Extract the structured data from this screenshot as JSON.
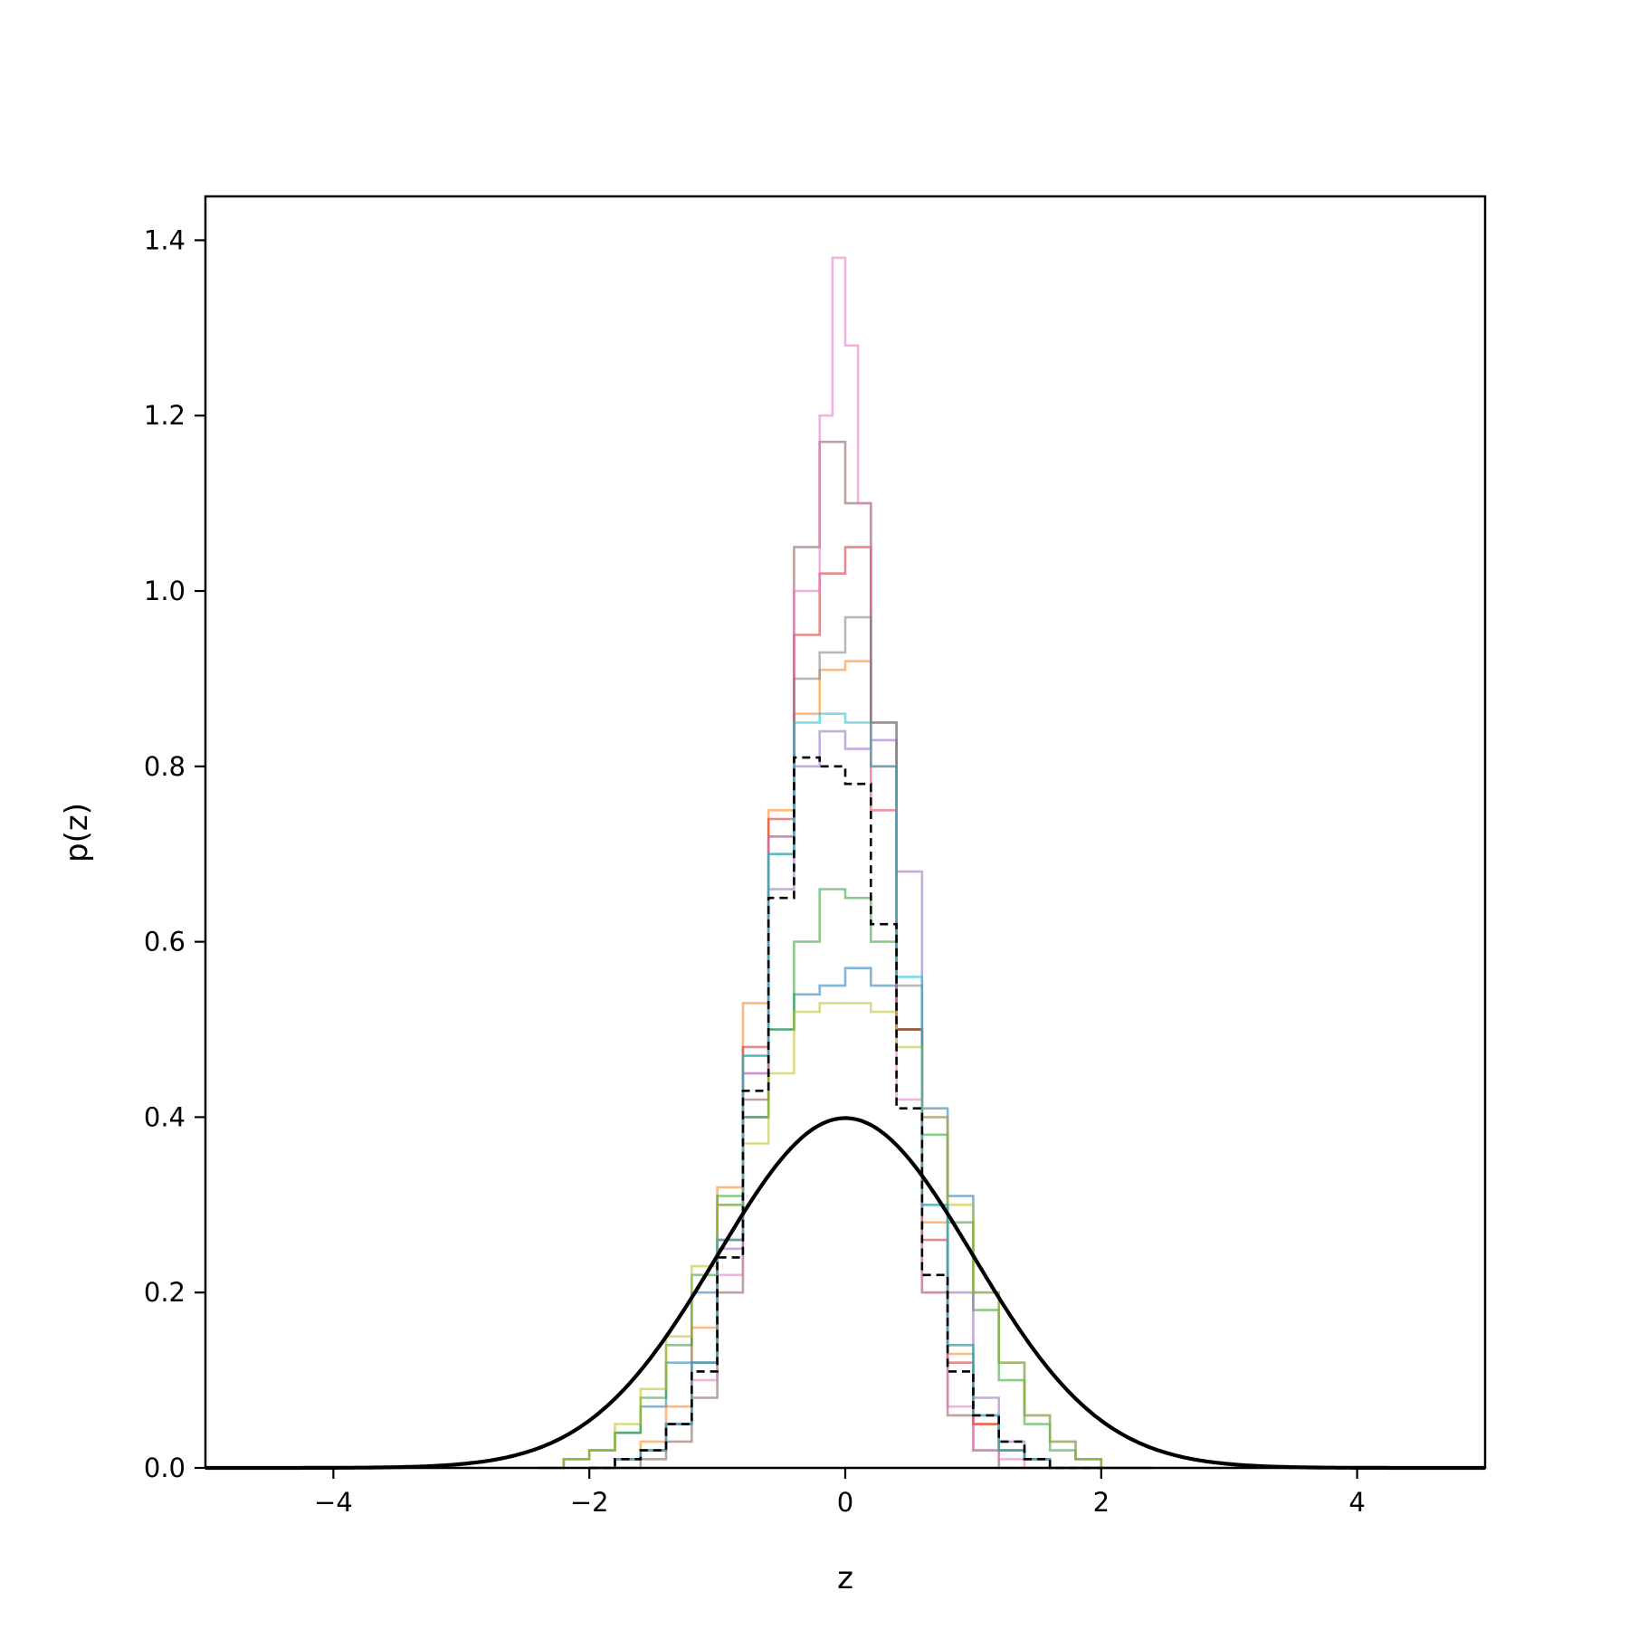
{
  "chart_data": {
    "type": "line",
    "title": "",
    "xlabel": "z",
    "ylabel": "p(z)",
    "xlim": [
      -5,
      5
    ],
    "ylim": [
      0,
      1.45
    ],
    "xticks": [
      -4,
      -2,
      0,
      2,
      4
    ],
    "xtick_labels": [
      "−4",
      "−2",
      "0",
      "2",
      "4"
    ],
    "yticks": [
      0.0,
      0.2,
      0.4,
      0.6,
      0.8,
      1.0,
      1.2,
      1.4
    ],
    "ytick_labels": [
      "0.0",
      "0.2",
      "0.4",
      "0.6",
      "0.8",
      "1.0",
      "1.2",
      "1.4"
    ],
    "grid": false,
    "legend": "none",
    "reference_curve": {
      "style": "solid",
      "color": "#000000",
      "mean": 0,
      "std": 1,
      "x": [
        -5,
        -4.5,
        -4,
        -3.5,
        -3,
        -2.5,
        -2,
        -1.5,
        -1,
        -0.5,
        0,
        0.5,
        1,
        1.5,
        2,
        2.5,
        3,
        3.5,
        4,
        4.5,
        5
      ],
      "y": [
        0.0,
        0.0,
        0.0001,
        0.0009,
        0.0044,
        0.0175,
        0.054,
        0.1295,
        0.242,
        0.3521,
        0.3989,
        0.3521,
        0.242,
        0.1295,
        0.054,
        0.0175,
        0.0044,
        0.0009,
        0.0001,
        0.0,
        0.0
      ]
    },
    "aggregate_histogram": {
      "style": "dashed",
      "color": "#000000",
      "edges": [
        -2.0,
        -1.8,
        -1.6,
        -1.4,
        -1.2,
        -1.0,
        -0.8,
        -0.6,
        -0.4,
        -0.2,
        0.0,
        0.2,
        0.4,
        0.6,
        0.8,
        1.0,
        1.2,
        1.4,
        1.6,
        1.8,
        2.0
      ],
      "values": [
        0.0,
        0.01,
        0.02,
        0.05,
        0.11,
        0.24,
        0.43,
        0.65,
        0.81,
        0.8,
        0.78,
        0.62,
        0.41,
        0.22,
        0.11,
        0.06,
        0.03,
        0.01,
        0.0,
        0.0
      ]
    },
    "series_histograms": [
      {
        "color": "#1f77b4",
        "edges": [
          -2.4,
          -2.2,
          -2.0,
          -1.8,
          -1.6,
          -1.4,
          -1.2,
          -1.0,
          -0.8,
          -0.6,
          -0.4,
          -0.2,
          0.0,
          0.2,
          0.4,
          0.6,
          0.8,
          1.0,
          1.2,
          1.4,
          1.6,
          1.8,
          2.0,
          2.2,
          2.4
        ],
        "values": [
          0.0,
          0.01,
          0.02,
          0.04,
          0.07,
          0.12,
          0.2,
          0.3,
          0.4,
          0.5,
          0.54,
          0.55,
          0.57,
          0.55,
          0.5,
          0.41,
          0.31,
          0.2,
          0.12,
          0.06,
          0.03,
          0.01,
          0.0,
          0.0
        ]
      },
      {
        "color": "#ff7f0e",
        "edges": [
          -2.0,
          -1.8,
          -1.6,
          -1.4,
          -1.2,
          -1.0,
          -0.8,
          -0.6,
          -0.4,
          -0.2,
          0.0,
          0.2,
          0.4,
          0.6,
          0.8,
          1.0,
          1.2,
          1.4,
          1.6,
          1.8,
          2.0
        ],
        "values": [
          0.0,
          0.01,
          0.03,
          0.07,
          0.16,
          0.32,
          0.53,
          0.75,
          0.86,
          0.91,
          0.92,
          0.75,
          0.5,
          0.28,
          0.13,
          0.05,
          0.02,
          0.01,
          0.0,
          0.0
        ]
      },
      {
        "color": "#2ca02c",
        "edges": [
          -2.4,
          -2.2,
          -2.0,
          -1.8,
          -1.6,
          -1.4,
          -1.2,
          -1.0,
          -0.8,
          -0.6,
          -0.4,
          -0.2,
          0.0,
          0.2,
          0.4,
          0.6,
          0.8,
          1.0,
          1.2,
          1.4,
          1.6,
          1.8,
          2.0,
          2.2,
          2.4
        ],
        "values": [
          0.0,
          0.01,
          0.02,
          0.04,
          0.08,
          0.14,
          0.22,
          0.31,
          0.4,
          0.5,
          0.6,
          0.66,
          0.65,
          0.6,
          0.5,
          0.38,
          0.28,
          0.18,
          0.1,
          0.05,
          0.02,
          0.01,
          0.0,
          0.0
        ]
      },
      {
        "color": "#d62728",
        "edges": [
          -2.0,
          -1.8,
          -1.6,
          -1.4,
          -1.2,
          -1.0,
          -0.8,
          -0.6,
          -0.4,
          -0.2,
          0.0,
          0.2,
          0.4,
          0.6,
          0.8,
          1.0,
          1.2,
          1.4,
          1.6,
          1.8,
          2.0
        ],
        "values": [
          0.0,
          0.01,
          0.02,
          0.05,
          0.12,
          0.26,
          0.48,
          0.74,
          0.95,
          1.02,
          1.05,
          0.8,
          0.5,
          0.26,
          0.12,
          0.05,
          0.02,
          0.01,
          0.0,
          0.0
        ]
      },
      {
        "color": "#9467bd",
        "edges": [
          -2.0,
          -1.8,
          -1.6,
          -1.4,
          -1.2,
          -1.0,
          -0.8,
          -0.6,
          -0.4,
          -0.2,
          0.0,
          0.2,
          0.4,
          0.6,
          0.8,
          1.0,
          1.2,
          1.4,
          1.6,
          1.8,
          2.0
        ],
        "values": [
          0.0,
          0.01,
          0.02,
          0.05,
          0.12,
          0.25,
          0.45,
          0.66,
          0.8,
          0.84,
          0.82,
          0.83,
          0.68,
          0.4,
          0.2,
          0.08,
          0.03,
          0.01,
          0.0,
          0.0
        ]
      },
      {
        "color": "#8c564b",
        "edges": [
          -2.0,
          -1.8,
          -1.6,
          -1.4,
          -1.2,
          -1.0,
          -0.8,
          -0.6,
          -0.4,
          -0.2,
          0.0,
          0.2,
          0.4,
          0.6,
          0.8,
          1.0,
          1.2,
          1.4,
          1.6,
          1.8,
          2.0
        ],
        "values": [
          0.0,
          0.0,
          0.01,
          0.03,
          0.08,
          0.2,
          0.42,
          0.72,
          1.05,
          1.17,
          1.1,
          0.85,
          0.5,
          0.2,
          0.06,
          0.02,
          0.0,
          0.0,
          0.0,
          0.0
        ]
      },
      {
        "color": "#e377c2",
        "edges": [
          -2.0,
          -1.8,
          -1.6,
          -1.4,
          -1.2,
          -1.0,
          -0.8,
          -0.6,
          -0.4,
          -0.2,
          -0.1,
          0.0,
          0.1,
          0.2,
          0.4,
          0.6,
          0.8,
          1.0,
          1.2,
          1.4,
          1.6
        ],
        "values": [
          0.0,
          0.01,
          0.02,
          0.05,
          0.1,
          0.22,
          0.45,
          0.72,
          1.0,
          1.2,
          1.38,
          1.28,
          1.1,
          0.75,
          0.42,
          0.2,
          0.07,
          0.02,
          0.01,
          0.0
        ]
      },
      {
        "color": "#7f7f7f",
        "edges": [
          -2.0,
          -1.8,
          -1.6,
          -1.4,
          -1.2,
          -1.0,
          -0.8,
          -0.6,
          -0.4,
          -0.2,
          0.0,
          0.2,
          0.4,
          0.6,
          0.8,
          1.0,
          1.2,
          1.4,
          1.6,
          1.8,
          2.0
        ],
        "values": [
          0.0,
          0.01,
          0.02,
          0.05,
          0.12,
          0.26,
          0.47,
          0.7,
          0.9,
          0.93,
          0.97,
          0.85,
          0.55,
          0.3,
          0.14,
          0.06,
          0.02,
          0.01,
          0.0,
          0.0
        ]
      },
      {
        "color": "#bcbd22",
        "edges": [
          -2.4,
          -2.2,
          -2.0,
          -1.8,
          -1.6,
          -1.4,
          -1.2,
          -1.0,
          -0.8,
          -0.6,
          -0.4,
          -0.2,
          0.0,
          0.2,
          0.4,
          0.6,
          0.8,
          1.0,
          1.2,
          1.4,
          1.6,
          1.8,
          2.0,
          2.2,
          2.4
        ],
        "values": [
          0.0,
          0.01,
          0.02,
          0.05,
          0.09,
          0.15,
          0.23,
          0.3,
          0.37,
          0.45,
          0.52,
          0.53,
          0.53,
          0.52,
          0.48,
          0.4,
          0.3,
          0.2,
          0.12,
          0.06,
          0.03,
          0.01,
          0.0,
          0.0
        ]
      },
      {
        "color": "#17becf",
        "edges": [
          -2.0,
          -1.8,
          -1.6,
          -1.4,
          -1.2,
          -1.0,
          -0.8,
          -0.6,
          -0.4,
          -0.2,
          0.0,
          0.2,
          0.4,
          0.6,
          0.8,
          1.0,
          1.2,
          1.4,
          1.6,
          1.8,
          2.0
        ],
        "values": [
          0.0,
          0.01,
          0.02,
          0.05,
          0.12,
          0.26,
          0.47,
          0.7,
          0.85,
          0.86,
          0.85,
          0.8,
          0.56,
          0.3,
          0.14,
          0.06,
          0.02,
          0.01,
          0.0,
          0.0
        ]
      }
    ]
  }
}
